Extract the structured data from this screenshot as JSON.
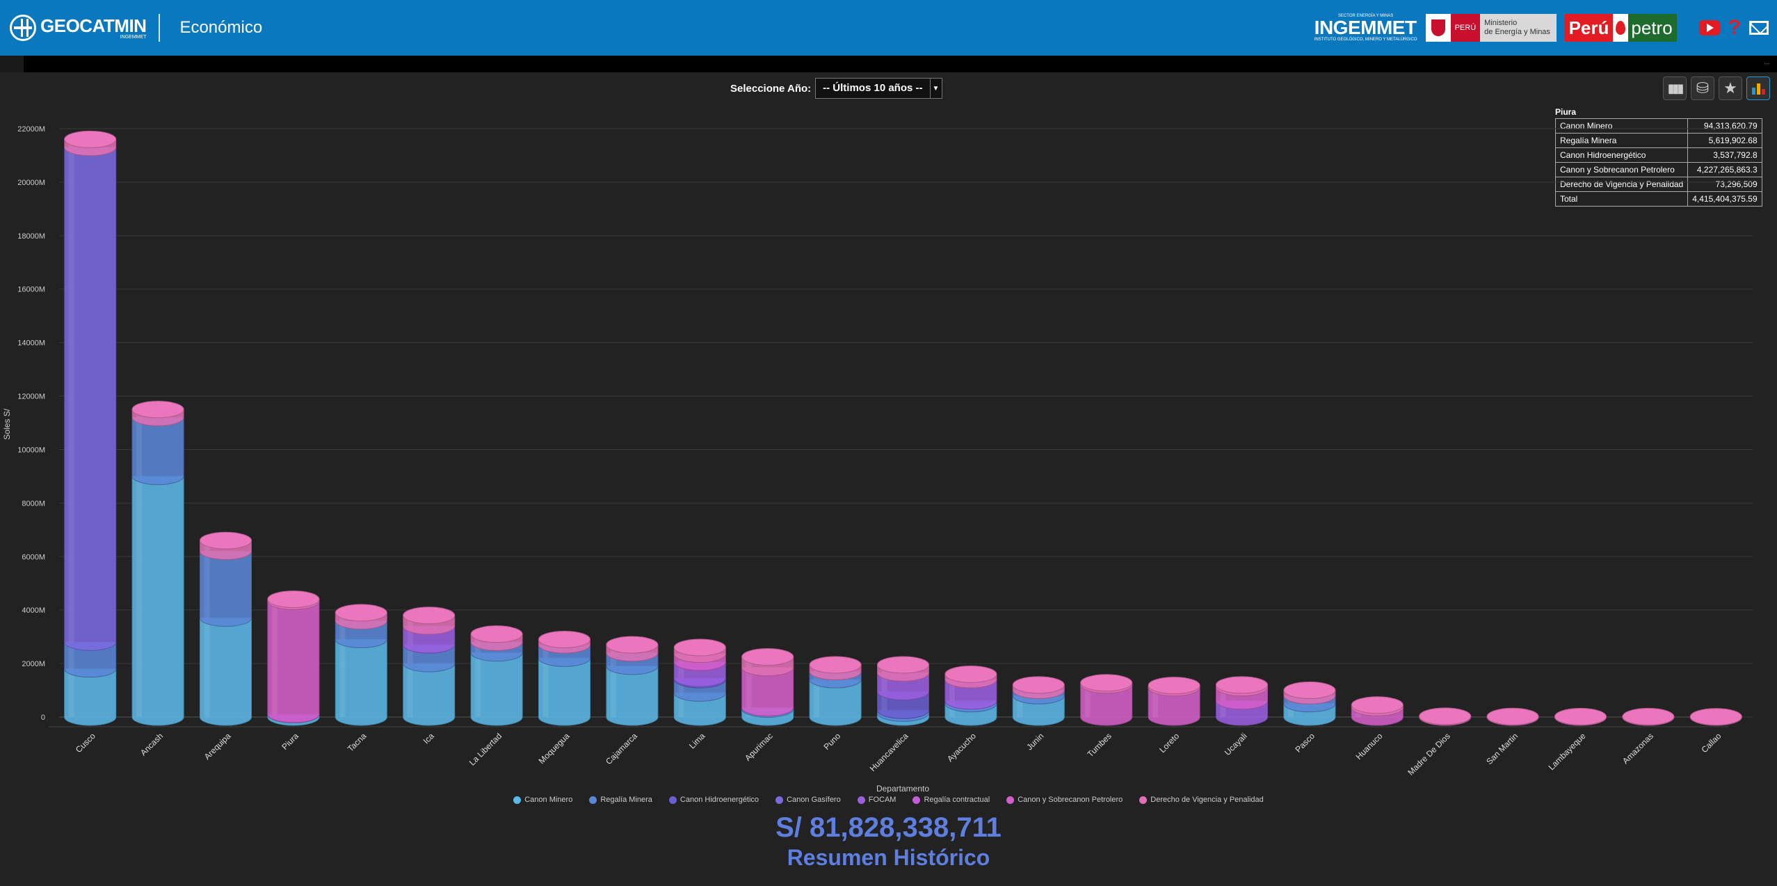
{
  "header": {
    "brand": "GEOCATMIN",
    "brand_sub": "INGEMMET",
    "section": "Económico",
    "ingemmet_top": "SECTOR ENERGÍA Y MINAS",
    "ingemmet": "INGEMMET",
    "ingemmet_sub": "INSTITUTO GEOLÓGICO, MINERO Y METALÚRGICO",
    "peru": "PERÚ",
    "ministerio_line1": "Ministerio",
    "ministerio_line2": "de Energía y Minas",
    "perupetro_1": "Perú",
    "perupetro_2": "petro"
  },
  "controls": {
    "year_label": "Seleccione Año:",
    "year_value": "-- Últimos 10 años --"
  },
  "tools": [
    "bar-chart-icon",
    "cylinder-icon",
    "star-icon",
    "color-chart-icon"
  ],
  "detail": {
    "title": "Piura",
    "rows": [
      {
        "label": "Canon Minero",
        "value": "94,313,620.79"
      },
      {
        "label": "Regalía Minera",
        "value": "5,619,902.68"
      },
      {
        "label": "Canon Hidroenergético",
        "value": "3,537,792.8"
      },
      {
        "label": "Canon y Sobrecanon Petrolero",
        "value": "4,227,265,863.3"
      },
      {
        "label": "Derecho de Vigencia y Penalidad",
        "value": "73,296,509"
      },
      {
        "label": "Total",
        "value": "4,415,404,375.59"
      }
    ]
  },
  "chart_data": {
    "type": "bar",
    "stacked": true,
    "xlabel": "Departamento",
    "ylabel": "Soles S/",
    "ylim": [
      0,
      22000
    ],
    "yticks": [
      "0",
      "2000M",
      "4000M",
      "6000M",
      "8000M",
      "10000M",
      "12000M",
      "14000M",
      "16000M",
      "18000M",
      "20000M",
      "22000M"
    ],
    "categories": [
      "Cusco",
      "Ancash",
      "Arequipa",
      "Piura",
      "Tacna",
      "Ica",
      "La Libertad",
      "Moquegua",
      "Cajamarca",
      "Lima",
      "Apurimac",
      "Puno",
      "Huancavelica",
      "Ayacucho",
      "Junin",
      "Tumbes",
      "Loreto",
      "Ucayali",
      "Pasco",
      "Huanuco",
      "Madre De Dios",
      "San Martin",
      "Lambayeque",
      "Amazonas",
      "Callao"
    ],
    "series": [
      {
        "name": "Canon Minero",
        "color": "#5bb8e8",
        "values": [
          1800,
          9000,
          3700,
          94,
          2900,
          2000,
          2400,
          2200,
          1900,
          900,
          300,
          1400,
          150,
          500,
          800,
          0,
          0,
          0,
          500,
          0,
          0,
          0,
          0,
          0,
          0
        ]
      },
      {
        "name": "Regalía Minera",
        "color": "#5a86d6",
        "values": [
          1000,
          2200,
          2500,
          6,
          700,
          700,
          400,
          500,
          500,
          500,
          50,
          300,
          100,
          100,
          200,
          0,
          0,
          0,
          300,
          0,
          0,
          0,
          0,
          0,
          0
        ]
      },
      {
        "name": "Canon Hidroenergético",
        "color": "#6a5fd0",
        "values": [
          0,
          0,
          0,
          4,
          0,
          0,
          0,
          0,
          0,
          50,
          0,
          0,
          700,
          0,
          0,
          0,
          0,
          0,
          0,
          0,
          0,
          0,
          0,
          0,
          0
        ]
      },
      {
        "name": "Canon Gasífero",
        "color": "#7b6ae0",
        "values": [
          18500,
          0,
          0,
          0,
          0,
          0,
          0,
          0,
          0,
          0,
          0,
          0,
          0,
          0,
          0,
          0,
          0,
          0,
          0,
          0,
          0,
          0,
          0,
          0,
          0
        ]
      },
      {
        "name": "FOCAM",
        "color": "#9b5fe0",
        "values": [
          0,
          0,
          0,
          0,
          0,
          700,
          0,
          0,
          0,
          600,
          0,
          0,
          700,
          800,
          0,
          0,
          0,
          600,
          0,
          0,
          0,
          0,
          0,
          0,
          0
        ]
      },
      {
        "name": "Regalía contractual",
        "color": "#c25fd8",
        "values": [
          0,
          0,
          0,
          0,
          0,
          0,
          0,
          0,
          0,
          0,
          0,
          0,
          0,
          0,
          0,
          0,
          0,
          0,
          0,
          0,
          0,
          0,
          0,
          0,
          0
        ]
      },
      {
        "name": "Canon y Sobrecanon Petrolero",
        "color": "#d55fc9",
        "values": [
          0,
          0,
          0,
          4227,
          0,
          0,
          0,
          0,
          0,
          300,
          1500,
          0,
          0,
          0,
          0,
          1200,
          1100,
          500,
          0,
          350,
          0,
          0,
          0,
          0,
          0
        ]
      },
      {
        "name": "Derecho de Vigencia y Penalidad",
        "color": "#e070b4",
        "values": [
          300,
          300,
          400,
          73,
          300,
          400,
          300,
          200,
          300,
          250,
          400,
          250,
          300,
          200,
          200,
          80,
          80,
          100,
          200,
          100,
          30,
          20,
          15,
          15,
          10
        ]
      }
    ]
  },
  "summary": {
    "total": "S/ 81,828,338,711",
    "subtitle": "Resumen Histórico"
  }
}
